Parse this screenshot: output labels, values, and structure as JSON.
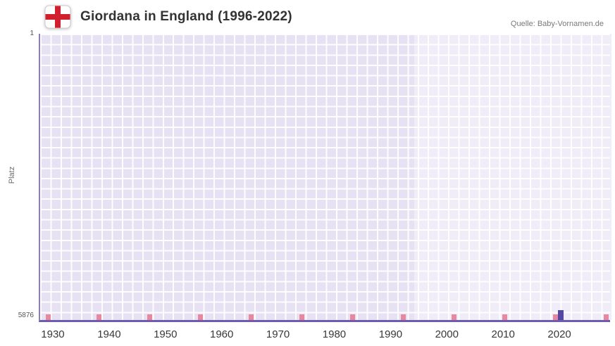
{
  "chart_data": {
    "type": "bar",
    "title": "Giordana in England (1996-2022)",
    "source": "Quelle: Baby-Vornamen.de",
    "ylabel": "Platz",
    "y_ticks": [
      "1",
      "5876"
    ],
    "ylim": [
      1,
      5876
    ],
    "y_reversed": true,
    "x_ticks": [
      1930,
      1940,
      1950,
      1960,
      1970,
      1980,
      1990,
      2000,
      2010,
      2020
    ],
    "xlim": [
      1927.5,
      2029
    ],
    "grid": true,
    "legend": false,
    "plot_band": {
      "from": 1994,
      "to": 2029
    },
    "x_minor_marks": [
      1929,
      1938,
      1947,
      1956,
      1965,
      1974,
      1983,
      1992,
      2001,
      2010,
      2019,
      2028
    ],
    "series": [
      {
        "name": "Giordana",
        "points": [
          {
            "x": 2020,
            "y": 5876
          }
        ]
      }
    ],
    "colors": {
      "bar": "#5546a2",
      "cell": "#e6e1f3",
      "band_cell": "#f0edf9",
      "grid_line": "#ffffff",
      "axis": "#6c5cae",
      "minor_mark": "#e8879e",
      "flag_cross": "#d21f2e"
    }
  }
}
